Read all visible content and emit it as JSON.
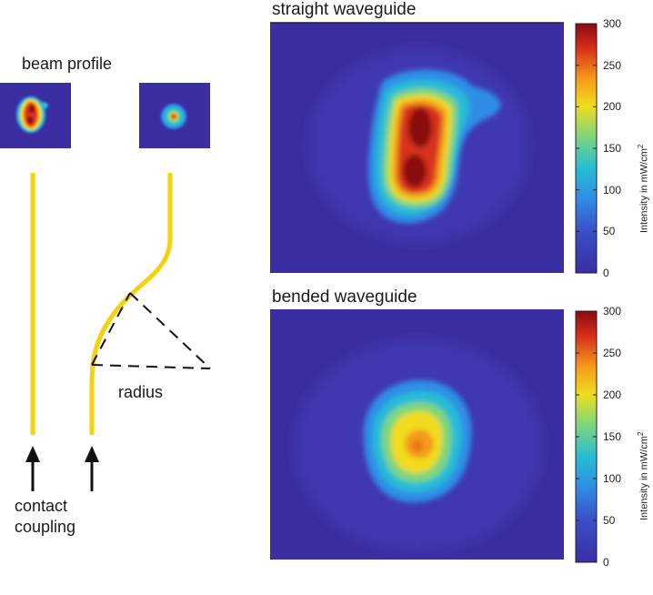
{
  "labels": {
    "beam_profile": "beam profile",
    "radius": "radius",
    "contact": "contact",
    "coupling": "coupling"
  },
  "panels": [
    {
      "title": "straight waveguide",
      "colorbar": {
        "ticks": [
          "300",
          "250",
          "200",
          "150",
          "100",
          "50",
          "0"
        ],
        "label": "Intensity in mW/cm",
        "label_sup": "2"
      }
    },
    {
      "title": "bended waveguide",
      "colorbar": {
        "ticks": [
          "300",
          "250",
          "200",
          "150",
          "100",
          "50",
          "0"
        ],
        "label": "Intensity in mW/cm",
        "label_sup": "2"
      }
    }
  ],
  "colors": {
    "background": "#3b2ea3",
    "waveguide": "#f5d20e",
    "colormap": [
      "#3b2ea3",
      "#2f6fe0",
      "#27b2d8",
      "#7fd67a",
      "#f0dc1e",
      "#f59a1a",
      "#d6301a",
      "#8a0a10"
    ]
  }
}
